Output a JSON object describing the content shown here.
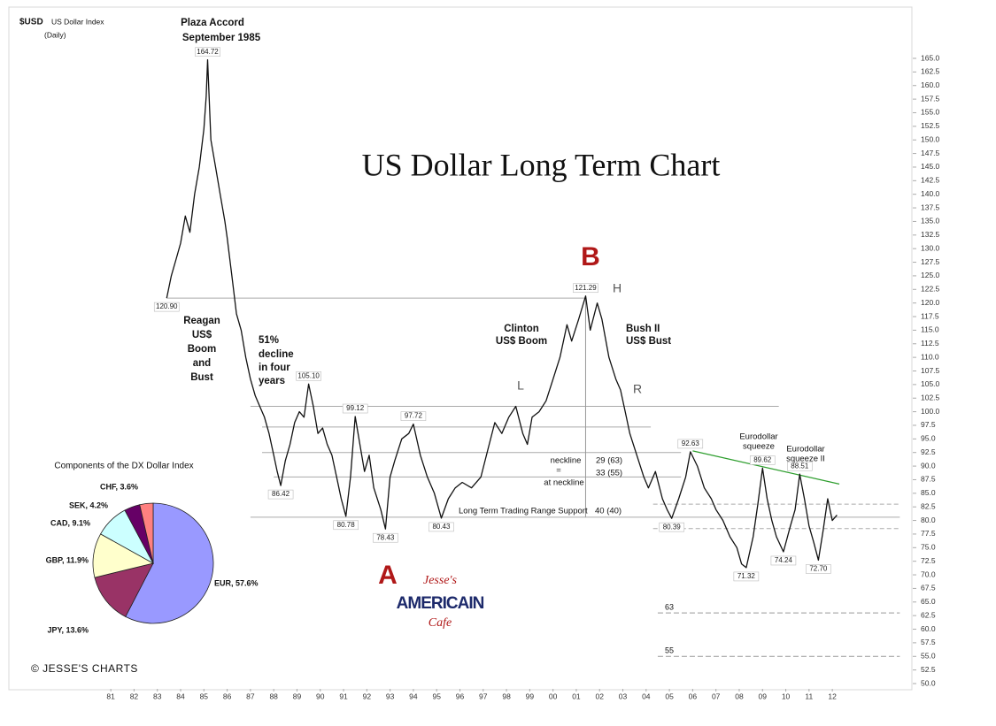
{
  "chart_data": [
    {
      "type": "line",
      "title": "US Dollar Long Term Chart",
      "symbol": "$USD",
      "index_name": "US Dollar Index",
      "period": "(Daily)",
      "color": "#111111",
      "x": [
        1983.4,
        1983.6,
        1983.8,
        1984.0,
        1984.2,
        1984.4,
        1984.6,
        1984.8,
        1985.0,
        1985.1,
        1985.16,
        1985.3,
        1985.5,
        1985.7,
        1985.9,
        1986.0,
        1986.2,
        1986.4,
        1986.6,
        1986.8,
        1987.0,
        1987.2,
        1987.4,
        1987.6,
        1987.8,
        1988.0,
        1988.15,
        1988.3,
        1988.5,
        1988.7,
        1988.9,
        1989.1,
        1989.3,
        1989.5,
        1989.7,
        1989.9,
        1990.1,
        1990.3,
        1990.5,
        1990.7,
        1990.9,
        1991.1,
        1991.3,
        1991.5,
        1991.7,
        1991.9,
        1992.1,
        1992.3,
        1992.6,
        1992.8,
        1993.0,
        1993.2,
        1993.5,
        1993.8,
        1994.0,
        1994.3,
        1994.6,
        1994.9,
        1995.2,
        1995.5,
        1995.8,
        1996.1,
        1996.5,
        1996.9,
        1997.2,
        1997.5,
        1997.8,
        1998.1,
        1998.4,
        1998.7,
        1998.9,
        1999.1,
        1999.4,
        1999.7,
        2000.0,
        2000.3,
        2000.6,
        2000.8,
        2001.1,
        2001.4,
        2001.6,
        2001.9,
        2002.1,
        2002.4,
        2002.7,
        2002.9,
        2003.1,
        2003.3,
        2003.6,
        2003.9,
        2004.1,
        2004.4,
        2004.7,
        2004.9,
        2005.1,
        2005.4,
        2005.7,
        2005.9,
        2006.2,
        2006.5,
        2006.8,
        2007.0,
        2007.3,
        2007.6,
        2007.9,
        2008.1,
        2008.3,
        2008.6,
        2008.8,
        2009.0,
        2009.2,
        2009.4,
        2009.6,
        2009.9,
        2010.2,
        2010.4,
        2010.6,
        2010.8,
        2011.0,
        2011.2,
        2011.4,
        2011.6,
        2011.8,
        2012.0,
        2012.2
      ],
      "values": [
        120.9,
        125,
        128,
        131,
        136,
        133,
        140,
        145,
        152,
        158,
        164.72,
        150,
        145,
        140,
        135,
        132,
        125,
        118,
        115,
        110,
        106,
        103,
        101,
        99,
        96,
        92,
        89,
        86.42,
        91,
        94,
        98,
        100,
        99,
        105.1,
        101,
        96,
        97,
        94,
        92,
        88,
        84,
        80.78,
        88,
        99.12,
        94,
        89,
        92,
        86,
        82,
        78.43,
        88,
        91,
        95,
        96,
        97.72,
        92,
        88,
        85,
        80.43,
        84,
        86,
        87,
        86,
        88,
        93,
        98,
        96,
        99,
        101,
        96,
        94,
        99,
        100,
        102,
        106,
        110,
        116,
        113,
        117,
        121.29,
        115,
        120,
        117,
        110,
        106,
        104,
        100,
        96,
        92,
        88,
        86,
        89,
        84,
        82,
        80.39,
        84,
        88,
        92.63,
        90,
        86,
        84,
        82,
        80,
        77,
        75,
        72,
        71.32,
        77,
        83,
        89.62,
        84,
        80,
        77,
        74.24,
        79,
        82,
        88.51,
        84,
        79,
        76,
        72.7,
        78,
        84,
        80,
        81
      ],
      "xlim": [
        1977,
        2015
      ],
      "xticks": [
        {
          "value": 1981,
          "label": "81"
        },
        {
          "value": 1982,
          "label": "82"
        },
        {
          "value": 1983,
          "label": "83"
        },
        {
          "value": 1984,
          "label": "84"
        },
        {
          "value": 1985,
          "label": "85"
        },
        {
          "value": 1986,
          "label": "86"
        },
        {
          "value": 1987,
          "label": "87"
        },
        {
          "value": 1988,
          "label": "88"
        },
        {
          "value": 1989,
          "label": "89"
        },
        {
          "value": 1990,
          "label": "90"
        },
        {
          "value": 1991,
          "label": "91"
        },
        {
          "value": 1992,
          "label": "92"
        },
        {
          "value": 1993,
          "label": "93"
        },
        {
          "value": 1994,
          "label": "94"
        },
        {
          "value": 1995,
          "label": "95"
        },
        {
          "value": 1996,
          "label": "96"
        },
        {
          "value": 1997,
          "label": "97"
        },
        {
          "value": 1998,
          "label": "98"
        },
        {
          "value": 1999,
          "label": "99"
        },
        {
          "value": 2000,
          "label": "00"
        },
        {
          "value": 2001,
          "label": "01"
        },
        {
          "value": 2002,
          "label": "02"
        },
        {
          "value": 2003,
          "label": "03"
        },
        {
          "value": 2004,
          "label": "04"
        },
        {
          "value": 2005,
          "label": "05"
        },
        {
          "value": 2006,
          "label": "06"
        },
        {
          "value": 2007,
          "label": "07"
        },
        {
          "value": 2008,
          "label": "08"
        },
        {
          "value": 2009,
          "label": "09"
        },
        {
          "value": 2010,
          "label": "10"
        },
        {
          "value": 2011,
          "label": "11"
        },
        {
          "value": 2012,
          "label": "12"
        }
      ],
      "ylim": [
        50,
        165
      ],
      "yticks": [
        {
          "value": 50,
          "label": "50.0"
        },
        {
          "value": 52.5,
          "label": "52.5"
        },
        {
          "value": 55,
          "label": "55.0"
        },
        {
          "value": 57.5,
          "label": "57.5"
        },
        {
          "value": 60,
          "label": "60.0"
        },
        {
          "value": 62.5,
          "label": "62.5"
        },
        {
          "value": 65,
          "label": "65.0"
        },
        {
          "value": 67.5,
          "label": "67.5"
        },
        {
          "value": 70,
          "label": "70.0"
        },
        {
          "value": 72.5,
          "label": "72.5"
        },
        {
          "value": 75,
          "label": "75.0"
        },
        {
          "value": 77.5,
          "label": "77.5"
        },
        {
          "value": 80,
          "label": "80.0"
        },
        {
          "value": 82.5,
          "label": "82.5"
        },
        {
          "value": 85,
          "label": "85.0"
        },
        {
          "value": 87.5,
          "label": "87.5"
        },
        {
          "value": 90,
          "label": "90.0"
        },
        {
          "value": 92.5,
          "label": "92.5"
        },
        {
          "value": 95,
          "label": "95.0"
        },
        {
          "value": 97.5,
          "label": "97.5"
        },
        {
          "value": 100,
          "label": "100.0"
        },
        {
          "value": 102.5,
          "label": "102.5"
        },
        {
          "value": 105,
          "label": "105.0"
        },
        {
          "value": 107.5,
          "label": "107.5"
        },
        {
          "value": 110,
          "label": "110.0"
        },
        {
          "value": 112.5,
          "label": "112.5"
        },
        {
          "value": 115,
          "label": "115.0"
        },
        {
          "value": 117.5,
          "label": "117.5"
        },
        {
          "value": 120,
          "label": "120.0"
        },
        {
          "value": 122.5,
          "label": "122.5"
        },
        {
          "value": 125,
          "label": "125.0"
        },
        {
          "value": 127.5,
          "label": "127.5"
        },
        {
          "value": 130,
          "label": "130.0"
        },
        {
          "value": 132.5,
          "label": "132.5"
        },
        {
          "value": 135,
          "label": "135.0"
        },
        {
          "value": 137.5,
          "label": "137.5"
        },
        {
          "value": 140,
          "label": "140.0"
        },
        {
          "value": 142.5,
          "label": "142.5"
        },
        {
          "value": 145,
          "label": "145.0"
        },
        {
          "value": 147.5,
          "label": "147.5"
        },
        {
          "value": 150,
          "label": "150.0"
        },
        {
          "value": 152.5,
          "label": "152.5"
        },
        {
          "value": 155,
          "label": "155.0"
        },
        {
          "value": 157.5,
          "label": "157.5"
        },
        {
          "value": 160,
          "label": "160.0"
        },
        {
          "value": 162.5,
          "label": "162.5"
        },
        {
          "value": 165,
          "label": "165.0"
        }
      ],
      "highs": [
        {
          "label": "164.72",
          "x": 1985.16,
          "y": 164.72
        },
        {
          "label": "105.10",
          "x": 1989.5,
          "y": 105.1
        },
        {
          "label": "99.12",
          "x": 1991.5,
          "y": 99.12
        },
        {
          "label": "97.72",
          "x": 1994.0,
          "y": 97.72
        },
        {
          "label": "121.29",
          "x": 2001.4,
          "y": 121.29
        },
        {
          "label": "92.63",
          "x": 2005.9,
          "y": 92.63
        },
        {
          "label": "89.62",
          "x": 2009.0,
          "y": 89.62
        },
        {
          "label": "88.51",
          "x": 2010.6,
          "y": 88.51
        }
      ],
      "lows": [
        {
          "label": "120.90",
          "x": 1983.4,
          "y": 120.9
        },
        {
          "label": "86.42",
          "x": 1988.3,
          "y": 86.42
        },
        {
          "label": "80.78",
          "x": 1991.1,
          "y": 80.78
        },
        {
          "label": "78.43",
          "x": 1992.8,
          "y": 78.43
        },
        {
          "label": "80.43",
          "x": 1995.2,
          "y": 80.43
        },
        {
          "label": "80.39",
          "x": 2005.1,
          "y": 80.39
        },
        {
          "label": "71.32",
          "x": 2008.3,
          "y": 71.32
        },
        {
          "label": "74.24",
          "x": 2009.9,
          "y": 74.24
        },
        {
          "label": "72.70",
          "x": 2011.4,
          "y": 72.7
        }
      ],
      "levels": [
        {
          "y": 120.9,
          "x": [
            1983.4,
            2001.4
          ]
        },
        {
          "y": 101,
          "x": [
            1987,
            2009.7
          ]
        },
        {
          "y": 97.2,
          "x": [
            1987.5,
            2004.2
          ]
        },
        {
          "y": 92.5,
          "x": [
            1987.5,
            2005.5
          ]
        },
        {
          "y": 88,
          "x": [
            1988,
            2005.5
          ]
        },
        {
          "y": 80.6,
          "x": [
            1987,
            2014.9
          ]
        }
      ],
      "dashed_levels": [
        {
          "y": 83,
          "x": [
            2004.3,
            2014.9
          ]
        },
        {
          "y": 78.5,
          "x": [
            2004.3,
            2014.9
          ]
        }
      ],
      "targets": [
        {
          "y": 63,
          "x": [
            2004.5,
            2014.9
          ]
        },
        {
          "y": 55,
          "x": [
            2004.5,
            2014.9
          ]
        }
      ],
      "measure": {
        "x": 2001.4,
        "y": [
          80.6,
          121.29
        ]
      },
      "trendline": {
        "x": [
          2006,
          2012.3
        ],
        "y": [
          92.8,
          86.7
        ],
        "color": "#2e9e2e"
      },
      "annotations": {
        "plaza": [
          "Plaza Accord",
          "September 1985"
        ],
        "reagan": [
          "Reagan",
          "US$",
          "Boom",
          "and",
          "Bust"
        ],
        "decline": [
          "51%",
          "decline",
          "in four",
          "years"
        ],
        "clinton": [
          "Clinton",
          "US$ Boom"
        ],
        "bush": [
          "Bush II",
          "US$ Bust"
        ],
        "l": "L",
        "h": "H",
        "r": "R",
        "a": "A",
        "b": "B",
        "neckline": "neckline",
        "neck_29": "29 (63)",
        "neck_eq": "=",
        "neck_33": "33 (55)",
        "at_neckline": "at neckline",
        "support": "Long Term Trading Range Support",
        "support_40": "40 (40)",
        "squeeze": [
          "Eurodollar",
          "squeeze"
        ],
        "squeeze2": [
          "Eurodollar",
          "squeeze II"
        ]
      },
      "credit": "© JESSE'S CHARTS",
      "logo": [
        "Jesse's",
        "AMERICAIN",
        "Cafe"
      ]
    },
    {
      "type": "pie",
      "title": "Components of the DX Dollar Index",
      "labels": [
        "EUR, 57.6%",
        "JPY, 13.6%",
        "GBP, 11.9%",
        "CAD, 9.1%",
        "SEK, 4.2%",
        "CHF, 3.6%"
      ],
      "values": [
        57.6,
        13.6,
        11.9,
        9.1,
        4.2,
        3.6
      ],
      "colors": [
        "#9999ff",
        "#993366",
        "#ffffcc",
        "#ccffff",
        "#660066",
        "#ff8080"
      ]
    }
  ]
}
